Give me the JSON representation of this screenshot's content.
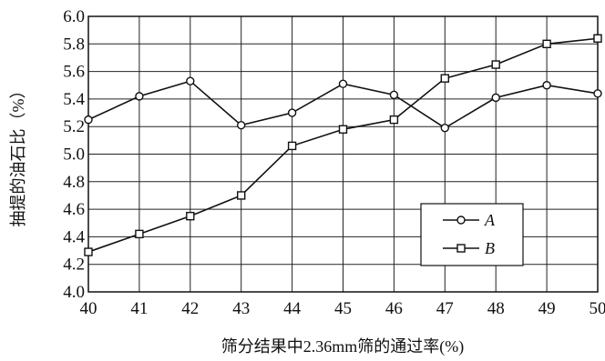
{
  "chart_data": {
    "type": "line",
    "xlabel": "筛分结果中2.36mm筛的通过率(%)",
    "ylabel": "抽提的油石比（%）",
    "xlim": [
      40,
      50
    ],
    "ylim": [
      4.0,
      6.0
    ],
    "grid": true,
    "legend_position": "bottom-right",
    "x_ticks": [
      "40",
      "41",
      "42",
      "43",
      "44",
      "45",
      "46",
      "47",
      "48",
      "49",
      "50"
    ],
    "y_ticks": [
      "4.0",
      "4.2",
      "4.4",
      "4.6",
      "4.8",
      "5.0",
      "5.2",
      "5.4",
      "5.6",
      "5.8",
      "6.0"
    ],
    "x": [
      40,
      41,
      42,
      43,
      44,
      45,
      46,
      47,
      48,
      49,
      50
    ],
    "series": [
      {
        "name": "A",
        "marker": "circle",
        "values": [
          5.25,
          5.42,
          5.53,
          5.21,
          5.3,
          5.51,
          5.43,
          5.19,
          5.41,
          5.5,
          5.44
        ]
      },
      {
        "name": "B",
        "marker": "square",
        "values": [
          4.29,
          4.42,
          4.55,
          4.7,
          5.06,
          5.18,
          5.25,
          5.55,
          5.65,
          5.8,
          5.84
        ]
      }
    ]
  }
}
